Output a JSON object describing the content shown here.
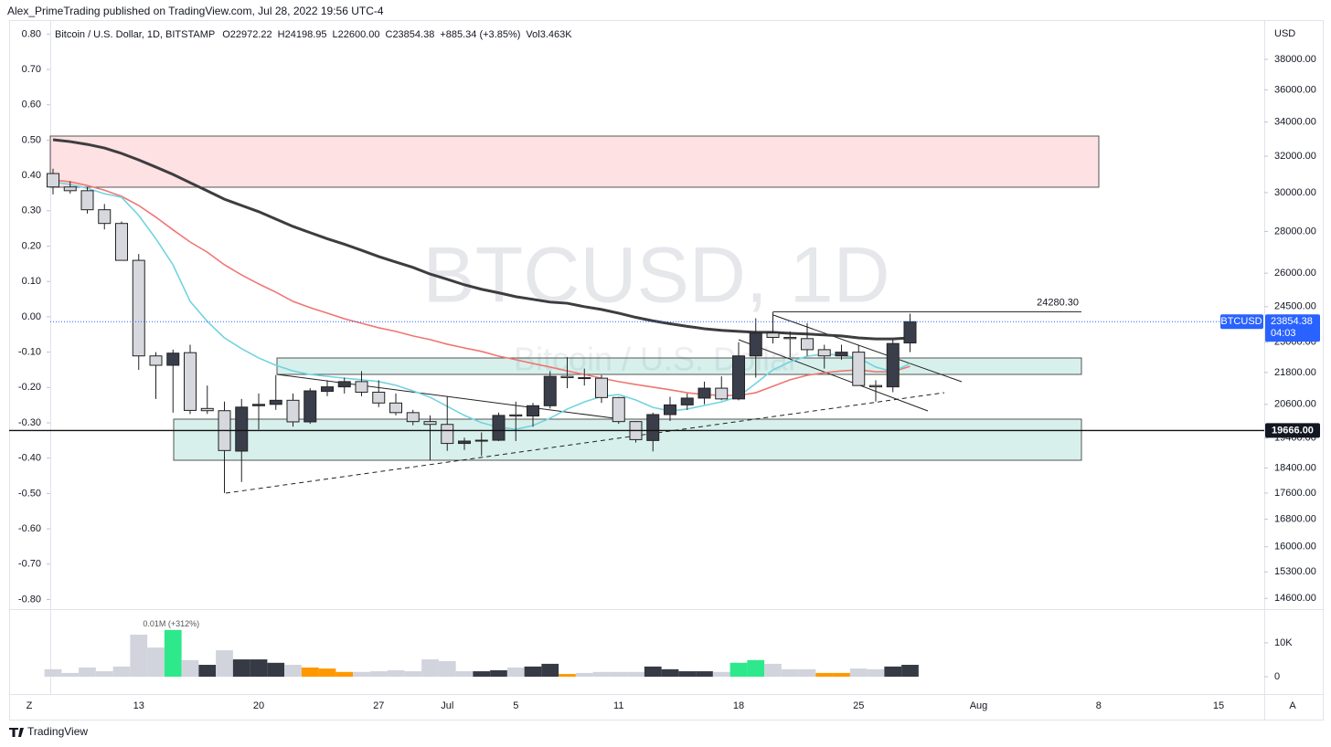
{
  "header": {
    "publisher": "Alex_PrimeTrading published on TradingView.com, Jul 28, 2022 19:56 UTC-4"
  },
  "chart_data": {
    "type": "candlestick",
    "title": "Bitcoin / U.S. Dollar, 1D, BITSTAMP",
    "legend_values": [
      "O22972.22",
      "H24198.95",
      "L22600.00",
      "C23854.38",
      "+885.34 (+3.85%)",
      "Vol3.463K"
    ],
    "watermark": "BTCUSD, 1D",
    "watermark_subtitle": "Bitcoin / U.S. Dollar",
    "currency": "USD",
    "x_labels": [
      "13",
      "20",
      "27",
      "Jul",
      "5",
      "11",
      "18",
      "25",
      "Aug",
      "8",
      "15"
    ],
    "open": [
      31030,
      30300,
      30100,
      29100,
      28400,
      26600,
      22450,
      22080,
      22580,
      20450,
      20370,
      18960,
      20550,
      20600,
      20750,
      19970,
      21080,
      21250,
      21450,
      21050,
      20650,
      20300,
      19980,
      19880,
      19220,
      19300,
      19330,
      20220,
      20180,
      20550,
      21650,
      21600,
      21580,
      20850,
      19980,
      19320,
      20230,
      20580,
      20830,
      21200,
      20800,
      22450,
      23380,
      23200,
      23150,
      22700,
      22450,
      22600,
      21300,
      21250,
      22972.22
    ],
    "high": [
      31300,
      30600,
      30300,
      29400,
      28500,
      26900,
      22600,
      22700,
      22900,
      21300,
      20700,
      20800,
      21000,
      21700,
      21000,
      21200,
      21500,
      21600,
      21850,
      21500,
      21000,
      20400,
      20200,
      20900,
      19420,
      19600,
      20300,
      20700,
      20650,
      21850,
      22400,
      21950,
      21700,
      20880,
      20000,
      20300,
      20880,
      21000,
      21450,
      21650,
      23000,
      24000,
      24280,
      23450,
      23800,
      22900,
      22900,
      22900,
      21500,
      23100,
      24198.95
    ],
    "low": [
      29900,
      29950,
      28900,
      28100,
      26600,
      21900,
      20800,
      20300,
      20250,
      20250,
      17600,
      17950,
      19700,
      20400,
      19800,
      19900,
      20900,
      21000,
      20900,
      20500,
      20200,
      19850,
      18650,
      18970,
      19000,
      18800,
      19300,
      19300,
      19800,
      20450,
      21200,
      21300,
      20650,
      19900,
      19250,
      18950,
      20000,
      20400,
      20600,
      20750,
      20750,
      21600,
      22950,
      22400,
      22450,
      21950,
      22300,
      21300,
      20700,
      21050,
      22600
    ],
    "close": [
      30300,
      30100,
      29100,
      28400,
      26600,
      22450,
      22080,
      22560,
      20380,
      20370,
      18980,
      20500,
      20600,
      20750,
      19970,
      21100,
      21250,
      21450,
      21050,
      20650,
      20300,
      19980,
      19880,
      19220,
      19300,
      19330,
      20200,
      20180,
      20550,
      21650,
      21600,
      21580,
      20850,
      19980,
      19350,
      20230,
      20580,
      20830,
      21200,
      20800,
      22450,
      23380,
      23200,
      23150,
      22700,
      22450,
      22600,
      21300,
      21250,
      22950,
      23854.38
    ],
    "up_color": "#3a3e4a",
    "down_color": "#d6d8de",
    "log_scale": true,
    "ylim": [
      14370,
      40220
    ],
    "yticks": [
      {
        "value": 38000,
        "label": "38000.00"
      },
      {
        "value": 36000,
        "label": "36000.00"
      },
      {
        "value": 34000,
        "label": "34000.00"
      },
      {
        "value": 32000,
        "label": "32000.00"
      },
      {
        "value": 30000,
        "label": "30000.00"
      },
      {
        "value": 28000,
        "label": "28000.00"
      },
      {
        "value": 26000,
        "label": "26000.00"
      },
      {
        "value": 24500,
        "label": "24500.00"
      },
      {
        "value": 23000,
        "label": "23000.00"
      },
      {
        "value": 21800,
        "label": "21800.00"
      },
      {
        "value": 20600,
        "label": "20600.00"
      },
      {
        "value": 19400,
        "label": "19400.00"
      },
      {
        "value": 18400,
        "label": "18400.00"
      },
      {
        "value": 17600,
        "label": "17600.00"
      },
      {
        "value": 16800,
        "label": "16800.00"
      },
      {
        "value": 16000,
        "label": "16000.00"
      },
      {
        "value": 15300,
        "label": "15300.00"
      },
      {
        "value": 14600,
        "label": "14600.00"
      }
    ],
    "y2lim": [
      -0.822,
      0.819
    ],
    "y2ticks": [
      {
        "value": 0.8,
        "label": "0.80"
      },
      {
        "value": 0.7,
        "label": "0.70"
      },
      {
        "value": 0.6,
        "label": "0.60"
      },
      {
        "value": 0.5,
        "label": "0.50"
      },
      {
        "value": 0.4,
        "label": "0.40"
      },
      {
        "value": 0.3,
        "label": "0.30"
      },
      {
        "value": 0.2,
        "label": "0.20"
      },
      {
        "value": 0.1,
        "label": "0.10"
      },
      {
        "value": 0,
        "label": "0.00"
      },
      {
        "value": -0.1,
        "label": "-0.10"
      },
      {
        "value": -0.2,
        "label": "-0.20"
      },
      {
        "value": -0.3,
        "label": "-0.30"
      },
      {
        "value": -0.4,
        "label": "-0.40"
      },
      {
        "value": -0.5,
        "label": "-0.50"
      },
      {
        "value": -0.6,
        "label": "-0.60"
      },
      {
        "value": -0.7,
        "label": "-0.70"
      },
      {
        "value": -0.8,
        "label": "-0.80"
      }
    ],
    "moving_averages": [
      {
        "color": "#3d3d40",
        "values": [
          32950,
          32840,
          32680,
          32470,
          32160,
          31790,
          31390,
          30980,
          30530,
          30090,
          29650,
          29320,
          29000,
          28620,
          28250,
          27940,
          27640,
          27370,
          27080,
          26780,
          26520,
          26270,
          25960,
          25720,
          25470,
          25270,
          25110,
          24940,
          24820,
          24700,
          24650,
          24500,
          24380,
          24220,
          24040,
          23890,
          23770,
          23660,
          23560,
          23490,
          23450,
          23410,
          23410,
          23370,
          23340,
          23300,
          23260,
          23180,
          23140,
          23140,
          23180
        ]
      },
      {
        "color": "#ef7672",
        "values": [
          30680,
          30580,
          30380,
          30130,
          29800,
          29320,
          28720,
          28080,
          27480,
          26990,
          26390,
          25920,
          25510,
          25140,
          24730,
          24460,
          24220,
          23980,
          23790,
          23600,
          23450,
          23260,
          23110,
          22920,
          22770,
          22630,
          22440,
          22300,
          22150,
          22010,
          21860,
          21720,
          21580,
          21450,
          21340,
          21240,
          21140,
          21030,
          20960,
          20930,
          20930,
          21030,
          21270,
          21520,
          21690,
          21790,
          21860,
          21900,
          21830,
          21830,
          22040
        ]
      },
      {
        "color": "#72d3df",
        "values": [
          30580,
          30430,
          30230,
          29940,
          29750,
          28810,
          27640,
          26390,
          24730,
          23870,
          23180,
          22740,
          22370,
          22080,
          21860,
          21720,
          21650,
          21580,
          21520,
          21450,
          21310,
          21100,
          20860,
          20530,
          20200,
          19940,
          19780,
          19710,
          19840,
          20100,
          20430,
          20690,
          20890,
          20960,
          20760,
          20490,
          20360,
          20430,
          20560,
          20690,
          20890,
          21380,
          21900,
          22220,
          22440,
          22520,
          22480,
          22370,
          22010,
          21830,
          22150
        ]
      }
    ],
    "last_price": {
      "symbol": "BTCUSD",
      "value": 23854.38,
      "label": "23854.38",
      "countdown": "04:03",
      "color": "#2962ff"
    },
    "levels": [
      {
        "value": 24280.3,
        "label": "24280.30"
      },
      {
        "value": 19666,
        "label": "19666.00"
      }
    ],
    "volume": {
      "values": [
        2200,
        1100,
        2700,
        1600,
        3000,
        12400,
        8600,
        13800,
        4900,
        3500,
        7800,
        5100,
        5100,
        4100,
        3500,
        2700,
        2400,
        1400,
        1400,
        1600,
        1900,
        1600,
        5100,
        4600,
        1600,
        1600,
        1900,
        2700,
        3000,
        3800,
        800,
        1100,
        1400,
        1400,
        1400,
        3000,
        2200,
        1600,
        1600,
        1400,
        4100,
        4900,
        3800,
        2200,
        2200,
        1100,
        1100,
        2400,
        2200,
        3000,
        3500
      ],
      "colors": [
        "#d1d4dc",
        "#d1d4dc",
        "#d1d4dc",
        "#d1d4dc",
        "#d1d4dc",
        "#d1d4dc",
        "#d1d4dc",
        "#2ee88c",
        "#d1d4dc",
        "#363a45",
        "#d1d4dc",
        "#363a45",
        "#363a45",
        "#363a45",
        "#d1d4dc",
        "#ff9800",
        "#ff9800",
        "#ff9800",
        "#d1d4dc",
        "#d1d4dc",
        "#d1d4dc",
        "#d1d4dc",
        "#d1d4dc",
        "#d1d4dc",
        "#d1d4dc",
        "#363a45",
        "#363a45",
        "#d1d4dc",
        "#363a45",
        "#363a45",
        "#ff9800",
        "#d1d4dc",
        "#d1d4dc",
        "#d1d4dc",
        "#d1d4dc",
        "#363a45",
        "#363a45",
        "#363a45",
        "#363a45",
        "#d1d4dc",
        "#2ee88c",
        "#2ee88c",
        "#d1d4dc",
        "#d1d4dc",
        "#d1d4dc",
        "#ff9800",
        "#ff9800",
        "#d1d4dc",
        "#d1d4dc",
        "#363a45",
        "#363a45"
      ],
      "ylim": [
        0,
        18600
      ],
      "yticks": [
        0,
        {
          "value": 10000,
          "label": "10K"
        }
      ],
      "annotation": "0.01M (+312%)"
    }
  },
  "footer": {
    "scale_left": "Z",
    "scale_right": "A",
    "brand": "TradingView"
  }
}
